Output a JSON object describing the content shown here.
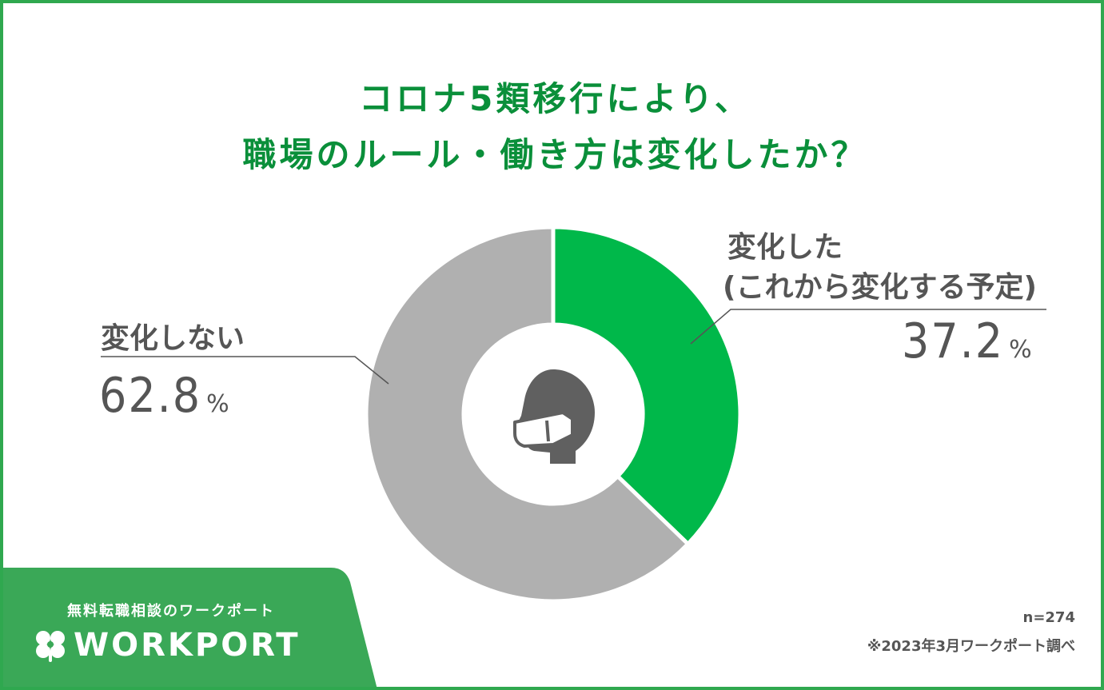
{
  "chart_data": {
    "type": "pie",
    "title": "コロナ5類移行により、\n職場のルール・働き方は変化したか？",
    "title_lines": [
      "コロナ5類移行により、",
      "職場のルール・働き方は変化したか？"
    ],
    "slices": [
      {
        "label": "変化した",
        "label2": "(これから変化する予定)",
        "value": 37.2,
        "value_text": "37.2",
        "unit": "%",
        "color": "#00b84a"
      },
      {
        "label": "変化しない",
        "value": 62.8,
        "value_text": "62.8",
        "unit": "%",
        "color": "#b0b0b0"
      }
    ],
    "center_icon": "masked-person-icon",
    "legend": "none"
  },
  "brand": {
    "tagline": "無料転職相談のワークポート",
    "name": "WORKPORT",
    "color": "#3aa857",
    "icon": "clover-icon"
  },
  "notes": {
    "sample": "n=274",
    "source": "※2023年3月ワークポート調べ"
  },
  "colors": {
    "title": "#0a8f3a",
    "text": "#555555",
    "frame": "#2fa84f"
  }
}
